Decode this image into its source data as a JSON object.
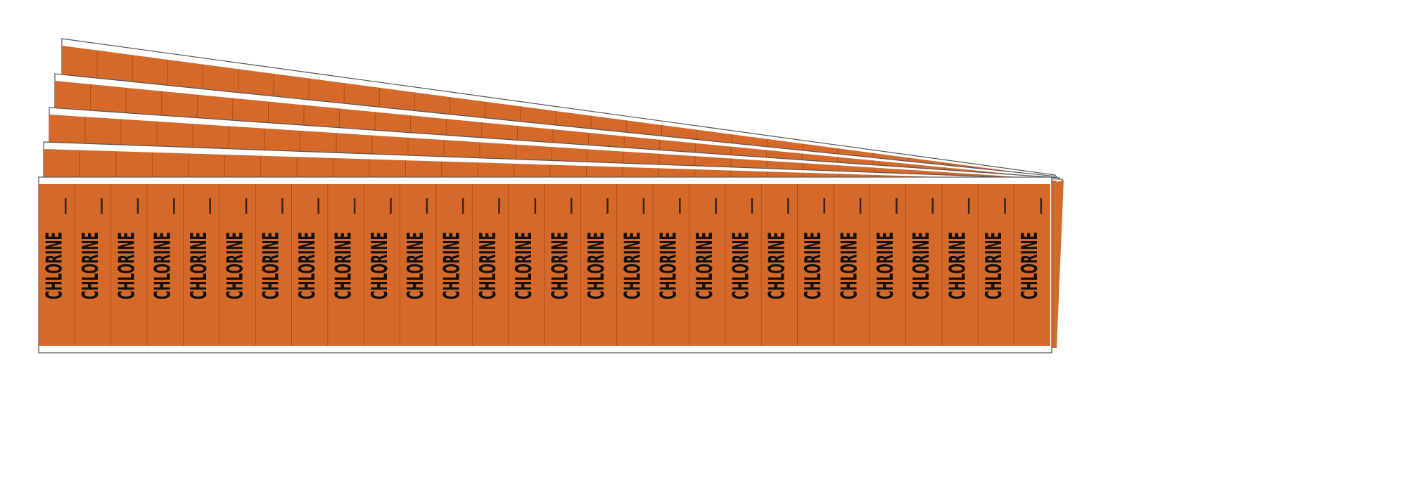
{
  "product": {
    "label_text": "CHLORINE",
    "labels_per_card": 28,
    "cards": 5
  },
  "colors": {
    "label_fill": "#d4692a",
    "label_divider": "#a04c1c",
    "card_border": "#ffffff",
    "outline": "#555555",
    "text": "#111111"
  }
}
